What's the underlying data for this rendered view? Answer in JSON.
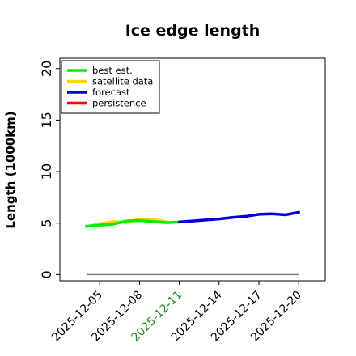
{
  "chart_data": {
    "type": "line",
    "title": "Ice edge length",
    "xlabel": "",
    "ylabel": "Length (1000km)",
    "ylim": [
      -0.6,
      21
    ],
    "yticks": [
      0,
      5,
      10,
      15,
      20
    ],
    "xlim": [
      "2025-12-02",
      "2025-12-22"
    ],
    "xticks": [
      {
        "label": "2025-12-05",
        "date": "2025-12-05",
        "color": "#000000"
      },
      {
        "label": "2025-12-08",
        "date": "2025-12-08",
        "color": "#000000"
      },
      {
        "label": "2025-12-11",
        "date": "2025-12-11",
        "color": "#228B22"
      },
      {
        "label": "2025-12-14",
        "date": "2025-12-14",
        "color": "#000000"
      },
      {
        "label": "2025-12-17",
        "date": "2025-12-17",
        "color": "#000000"
      },
      {
        "label": "2025-12-20",
        "date": "2025-12-20",
        "color": "#000000"
      }
    ],
    "legend_position": "top-left",
    "series": [
      {
        "name": "best est.",
        "color": "#00ee00",
        "x": [
          "2025-12-04",
          "2025-12-05",
          "2025-12-06",
          "2025-12-07",
          "2025-12-08",
          "2025-12-09",
          "2025-12-10",
          "2025-12-11"
        ],
        "y": [
          4.7,
          4.8,
          4.9,
          5.2,
          5.25,
          5.15,
          5.05,
          5.1
        ]
      },
      {
        "name": "satellite data",
        "color": "#ffd700",
        "x": [
          "2025-12-04",
          "2025-12-05",
          "2025-12-06",
          "2025-12-07",
          "2025-12-08",
          "2025-12-09",
          "2025-12-10"
        ],
        "y": [
          4.65,
          4.95,
          5.15,
          5.05,
          5.4,
          5.35,
          5.15
        ]
      },
      {
        "name": "forecast",
        "color": "#0000dd",
        "x": [
          "2025-12-11",
          "2025-12-12",
          "2025-12-13",
          "2025-12-14",
          "2025-12-15",
          "2025-12-16",
          "2025-12-17",
          "2025-12-18",
          "2025-12-19",
          "2025-12-20"
        ],
        "y": [
          5.1,
          5.2,
          5.3,
          5.4,
          5.55,
          5.65,
          5.85,
          5.9,
          5.8,
          6.05
        ]
      },
      {
        "name": "persistence",
        "color": "#ff0000",
        "x": [],
        "y": []
      }
    ],
    "baseline": {
      "x": [
        "2025-12-04",
        "2025-12-20"
      ],
      "y": [
        0,
        0
      ],
      "color": "#808080"
    }
  }
}
